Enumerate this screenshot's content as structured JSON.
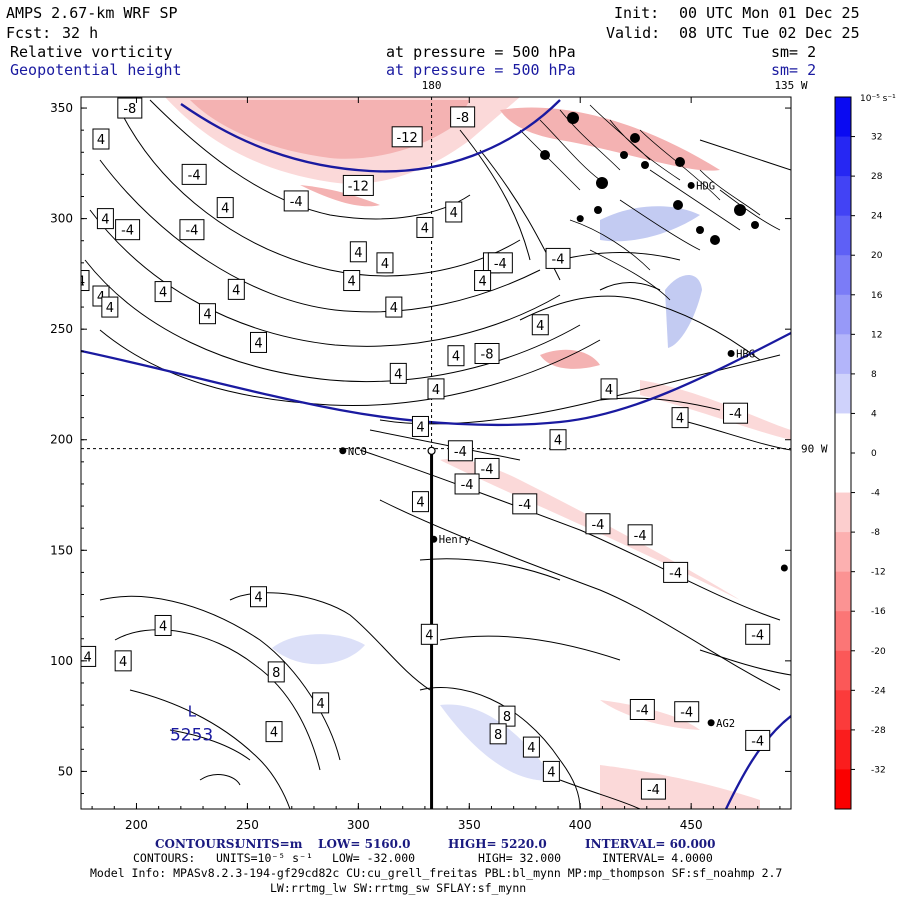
{
  "header": {
    "model": "AMPS 2.67-km WRF SP",
    "fcst_label": "Fcst:",
    "fcst_value": "32 h",
    "init_label": "Init:",
    "init_value": "00 UTC Mon 01 Dec 25",
    "valid_label": "Valid:",
    "valid_value": "08 UTC Tue 02 Dec 25",
    "field1_name": "Relative vorticity",
    "field1_level": "at pressure =  500 hPa",
    "field1_sm": "sm= 2",
    "field2_name": "Geopotential height",
    "field2_level": "at pressure =  500 hPa",
    "field2_sm": "sm= 2"
  },
  "colors": {
    "geopotential": "#1a1aa0",
    "positive_fill": "#2020e0",
    "negative_fill": "#e00000"
  },
  "chart_data": {
    "type": "map-contour",
    "x_axis": {
      "min": 175,
      "max": 495,
      "ticks": [
        200,
        250,
        300,
        350,
        400,
        450
      ]
    },
    "y_axis": {
      "min": 33,
      "max": 355,
      "ticks": [
        50,
        100,
        150,
        200,
        250,
        300,
        350
      ]
    },
    "meridian_labels": [
      {
        "text": "180",
        "x": 333
      },
      {
        "text": "135 W",
        "x": 495
      }
    ],
    "parallel_labels": [
      {
        "text": "90 W",
        "y": 196
      }
    ],
    "grid_lines": {
      "x": 333,
      "y": 196
    },
    "colorbar": {
      "unit": "10⁻⁵ s⁻¹",
      "levels": [
        36,
        32,
        28,
        24,
        20,
        16,
        12,
        8,
        4,
        0,
        -4,
        -8,
        -12,
        -16,
        -20,
        -24,
        -28,
        -32,
        -36
      ],
      "tick_labels": [
        "32",
        "28",
        "24",
        "20",
        "16",
        "12",
        "8",
        "4",
        "0",
        "-4",
        "-8",
        "-12",
        "-16",
        "-20",
        "-24",
        "-28",
        "-32"
      ]
    },
    "stations": [
      {
        "name": "NCO",
        "x": 293,
        "y": 195
      },
      {
        "name": "Henry",
        "x": 334,
        "y": 155
      },
      {
        "name": "HBG",
        "x": 468,
        "y": 239
      },
      {
        "name": "HDG",
        "x": 450,
        "y": 315
      },
      {
        "name": "AG2",
        "x": 459,
        "y": 72
      },
      {
        "name": "",
        "x": 400,
        "y": 300
      },
      {
        "name": "",
        "x": 492,
        "y": 142
      }
    ],
    "pole_marker": {
      "x": 333,
      "y": 195
    },
    "low_center": {
      "symbol": "L",
      "value": "5253",
      "x": 225,
      "y": 77
    },
    "vorticity_labels": [
      {
        "t": "-8",
        "x": 197,
        "y": 350
      },
      {
        "t": "4",
        "x": 184,
        "y": 336
      },
      {
        "t": "-12",
        "x": 322,
        "y": 337
      },
      {
        "t": "-8",
        "x": 347,
        "y": 346
      },
      {
        "t": "-4",
        "x": 226,
        "y": 320
      },
      {
        "t": "-12",
        "x": 300,
        "y": 315
      },
      {
        "t": "4",
        "x": 240,
        "y": 305
      },
      {
        "t": "-4",
        "x": 272,
        "y": 308
      },
      {
        "t": "4",
        "x": 343,
        "y": 303
      },
      {
        "t": "4",
        "x": 186,
        "y": 300
      },
      {
        "t": "-4",
        "x": 196,
        "y": 295
      },
      {
        "t": "4",
        "x": 330,
        "y": 296
      },
      {
        "t": "-4",
        "x": 225,
        "y": 295
      },
      {
        "t": "4",
        "x": 300,
        "y": 285
      },
      {
        "t": "4",
        "x": 312,
        "y": 280
      },
      {
        "t": "4",
        "x": 360,
        "y": 280
      },
      {
        "t": "-4",
        "x": 364,
        "y": 280
      },
      {
        "t": "-4",
        "x": 390,
        "y": 282
      },
      {
        "t": "4",
        "x": 175,
        "y": 272
      },
      {
        "t": "4",
        "x": 184,
        "y": 265
      },
      {
        "t": "4",
        "x": 212,
        "y": 267
      },
      {
        "t": "4",
        "x": 245,
        "y": 268
      },
      {
        "t": "4",
        "x": 297,
        "y": 272
      },
      {
        "t": "4",
        "x": 356,
        "y": 272
      },
      {
        "t": "4",
        "x": 188,
        "y": 260
      },
      {
        "t": "4",
        "x": 232,
        "y": 257
      },
      {
        "t": "4",
        "x": 316,
        "y": 260
      },
      {
        "t": "4",
        "x": 382,
        "y": 252
      },
      {
        "t": "4",
        "x": 255,
        "y": 244
      },
      {
        "t": "-8",
        "x": 358,
        "y": 239
      },
      {
        "t": "4",
        "x": 344,
        "y": 238
      },
      {
        "t": "4",
        "x": 335,
        "y": 223
      },
      {
        "t": "4",
        "x": 318,
        "y": 230
      },
      {
        "t": "4",
        "x": 413,
        "y": 223
      },
      {
        "t": "-4",
        "x": 470,
        "y": 212
      },
      {
        "t": "4",
        "x": 328,
        "y": 206
      },
      {
        "t": "4",
        "x": 390,
        "y": 200
      },
      {
        "t": "4",
        "x": 445,
        "y": 210
      },
      {
        "t": "-4",
        "x": 346,
        "y": 195
      },
      {
        "t": "-4",
        "x": 358,
        "y": 187
      },
      {
        "t": "-4",
        "x": 349,
        "y": 180
      },
      {
        "t": "4",
        "x": 328,
        "y": 172
      },
      {
        "t": "-4",
        "x": 375,
        "y": 171
      },
      {
        "t": "-4",
        "x": 408,
        "y": 162
      },
      {
        "t": "-4",
        "x": 427,
        "y": 157
      },
      {
        "t": "-4",
        "x": 443,
        "y": 140
      },
      {
        "t": "4",
        "x": 255,
        "y": 129
      },
      {
        "t": "4",
        "x": 212,
        "y": 116
      },
      {
        "t": "4",
        "x": 332,
        "y": 112
      },
      {
        "t": "-4",
        "x": 480,
        "y": 112
      },
      {
        "t": "4",
        "x": 178,
        "y": 102
      },
      {
        "t": "4",
        "x": 194,
        "y": 100
      },
      {
        "t": "8",
        "x": 263,
        "y": 95
      },
      {
        "t": "-4",
        "x": 428,
        "y": 78
      },
      {
        "t": "-4",
        "x": 448,
        "y": 77
      },
      {
        "t": "4",
        "x": 283,
        "y": 81
      },
      {
        "t": "8",
        "x": 367,
        "y": 75
      },
      {
        "t": "4",
        "x": 262,
        "y": 68
      },
      {
        "t": "8",
        "x": 363,
        "y": 67
      },
      {
        "t": "4",
        "x": 378,
        "y": 61
      },
      {
        "t": "-4",
        "x": 480,
        "y": 64
      },
      {
        "t": "4",
        "x": 387,
        "y": 50
      },
      {
        "t": "-4",
        "x": 433,
        "y": 42
      }
    ]
  },
  "footer": {
    "line1_label": "CONTOURS:",
    "line1_units": "UNITS=m",
    "line1_low": "LOW=  5160.0",
    "line1_high": "HIGH=  5220.0",
    "line1_interval": "INTERVAL=   60.000",
    "line2_label": "CONTOURS:",
    "line2_units": "UNITS=10⁻⁵ s⁻¹",
    "line2_low": "LOW=  -32.000",
    "line2_high": "HIGH=  32.000",
    "line2_interval": "INTERVAL=   4.0000",
    "model_info": "Model Info: MPASv8.2.3-194-gf29cd82c CU:cu_grell_freitas PBL:bl_mynn MP:mp_thompson SF:sf_noahmp 2.7",
    "model_info2": "LW:rrtmg_lw SW:rrtmg_sw SFLAY:sf_mynn"
  }
}
